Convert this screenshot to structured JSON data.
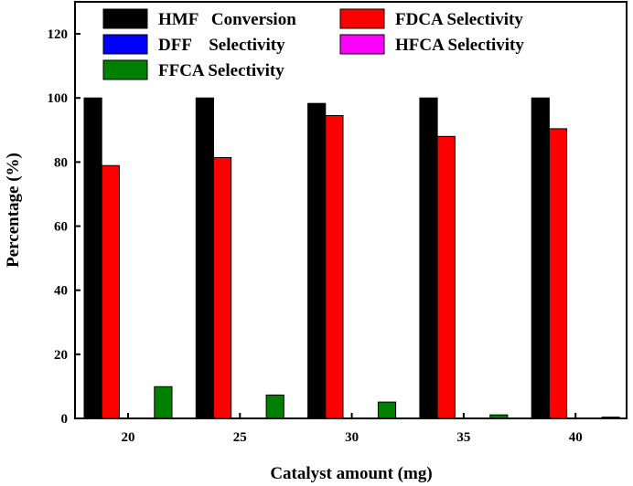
{
  "chart_data": {
    "type": "bar",
    "xlabel": "Catalyst amount (mg)",
    "ylabel": "Percentage (%)",
    "ylim": [
      0,
      130
    ],
    "yticks": [
      0,
      20,
      40,
      60,
      80,
      100,
      120
    ],
    "categories": [
      "20",
      "25",
      "30",
      "35",
      "40"
    ],
    "legend_position": "top",
    "series": [
      {
        "name": "HMF   Conversion",
        "color": "#000000",
        "values": [
          100,
          100,
          98.3,
          100,
          100
        ]
      },
      {
        "name": "FDCA Selectivity",
        "color": "#ff0000",
        "values": [
          78.9,
          81.4,
          94.5,
          88,
          90.4
        ]
      },
      {
        "name": "DFF    Selectivity",
        "color": "#0000ff",
        "values": [
          0,
          0,
          0,
          0,
          0
        ]
      },
      {
        "name": "HFCA Selectivity",
        "color": "#ff00ff",
        "values": [
          0,
          0,
          0,
          0,
          0
        ]
      },
      {
        "name": "FFCA Selectivity",
        "color": "#008000",
        "values": [
          9.9,
          7.3,
          5.1,
          1.1,
          0.4
        ]
      }
    ]
  }
}
